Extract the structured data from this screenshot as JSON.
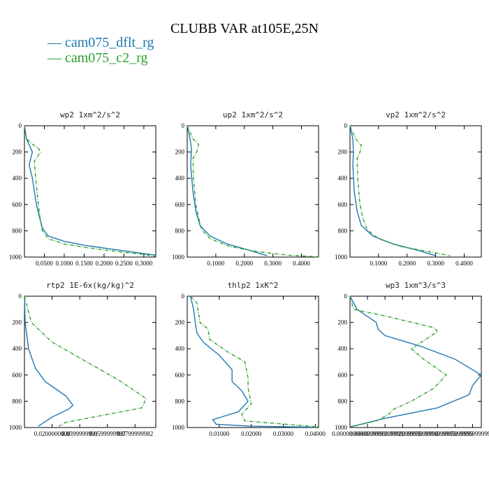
{
  "title": "CLUBB VAR at105E,25N",
  "legend": [
    {
      "name": "cam075_dflt_rg",
      "color": "#1f77b4",
      "style": "solid"
    },
    {
      "name": "cam075_c2_rg",
      "color": "#2ca02c",
      "style": "dash-dot"
    }
  ],
  "chart_data": [
    {
      "type": "line",
      "title": "wp2  1xm^2/s^2",
      "xlim": [
        0,
        0.33
      ],
      "ylim": [
        1000,
        0
      ],
      "yticks": [
        0,
        200,
        400,
        600,
        800,
        1000
      ],
      "xticks": [
        0.05,
        0.1,
        0.15,
        0.2,
        0.25,
        0.3
      ],
      "xtick_labels": [
        "0.0500",
        "0.1000",
        "0.1500",
        "0.2000",
        "0.2500",
        "0.3000"
      ],
      "series": [
        {
          "name": "cam075_dflt_rg",
          "x": [
            0,
            0.005,
            0.02,
            0.015,
            0.012,
            0.02,
            0.03,
            0.04,
            0.045,
            0.06,
            0.1,
            0.15,
            0.22,
            0.28,
            0.33
          ],
          "y": [
            0,
            100,
            200,
            260,
            300,
            400,
            600,
            720,
            780,
            840,
            880,
            910,
            940,
            965,
            985
          ]
        },
        {
          "name": "cam075_c2_rg",
          "x": [
            0,
            0.005,
            0.02,
            0.035,
            0.04,
            0.025,
            0.028,
            0.035,
            0.04,
            0.045,
            0.06,
            0.1,
            0.16,
            0.24,
            0.3,
            0.33
          ],
          "y": [
            0,
            100,
            140,
            170,
            200,
            270,
            400,
            600,
            720,
            800,
            860,
            900,
            930,
            960,
            980,
            995
          ]
        }
      ]
    },
    {
      "type": "line",
      "title": "up2  1xm^2/s^2",
      "xlim": [
        0,
        0.46
      ],
      "ylim": [
        1000,
        0
      ],
      "yticks": [
        0,
        200,
        400,
        600,
        800,
        1000
      ],
      "xticks": [
        0.1,
        0.2,
        0.3,
        0.4
      ],
      "xtick_labels": [
        "0.1000",
        "0.2000",
        "0.3000",
        "0.4000"
      ],
      "series": [
        {
          "name": "cam075_dflt_rg",
          "x": [
            0,
            0.01,
            0.015,
            0.012,
            0.02,
            0.03,
            0.045,
            0.08,
            0.14,
            0.22,
            0.28
          ],
          "y": [
            0,
            100,
            180,
            300,
            500,
            650,
            760,
            840,
            900,
            950,
            990
          ]
        },
        {
          "name": "cam075_c2_rg",
          "x": [
            0,
            0.02,
            0.04,
            0.035,
            0.02,
            0.022,
            0.03,
            0.04,
            0.05,
            0.08,
            0.15,
            0.25,
            0.35,
            0.46
          ],
          "y": [
            0,
            100,
            140,
            190,
            250,
            400,
            600,
            700,
            790,
            860,
            920,
            960,
            985,
            998
          ]
        }
      ]
    },
    {
      "type": "line",
      "title": "vp2  1xm^2/s^2",
      "xlim": [
        0,
        0.46
      ],
      "ylim": [
        1000,
        0
      ],
      "yticks": [
        0,
        200,
        400,
        600,
        800,
        1000
      ],
      "xticks": [
        0.1,
        0.2,
        0.3,
        0.4
      ],
      "xtick_labels": [
        "0.1000",
        "0.2000",
        "0.3000",
        "0.4000"
      ],
      "series": [
        {
          "name": "cam075_dflt_rg",
          "x": [
            0,
            0.01,
            0.012,
            0.01,
            0.015,
            0.025,
            0.04,
            0.08,
            0.15,
            0.24,
            0.3
          ],
          "y": [
            0,
            100,
            200,
            300,
            500,
            650,
            760,
            840,
            900,
            950,
            990
          ]
        },
        {
          "name": "cam075_c2_rg",
          "x": [
            0,
            0.02,
            0.04,
            0.035,
            0.025,
            0.027,
            0.035,
            0.045,
            0.06,
            0.1,
            0.18,
            0.28,
            0.35
          ],
          "y": [
            0,
            100,
            150,
            200,
            250,
            400,
            600,
            700,
            790,
            860,
            920,
            960,
            990
          ]
        }
      ]
    },
    {
      "type": "line",
      "title": "rtp2  1E-6x(kg/kg)^2",
      "xlim": [
        0,
        0.095
      ],
      "ylim": [
        1000,
        0
      ],
      "yticks": [
        0,
        200,
        400,
        600,
        800,
        1000
      ],
      "xticks": [
        0.02,
        0.04,
        0.06,
        0.08
      ],
      "xtick_labels": [
        "0.0200000000",
        "0.0399999991",
        "0.0599999987",
        "0.0799999982"
      ],
      "series": [
        {
          "name": "cam075_dflt_rg",
          "x": [
            0,
            0.0005,
            0.003,
            0.008,
            0.015,
            0.03,
            0.035,
            0.032,
            0.02,
            0.01
          ],
          "y": [
            0,
            200,
            400,
            550,
            650,
            760,
            830,
            860,
            920,
            990
          ]
        },
        {
          "name": "cam075_c2_rg",
          "x": [
            0,
            0.005,
            0.02,
            0.045,
            0.07,
            0.088,
            0.085,
            0.06,
            0.03,
            0.025
          ],
          "y": [
            0,
            200,
            350,
            500,
            650,
            780,
            850,
            900,
            960,
            990
          ]
        }
      ]
    },
    {
      "type": "line",
      "title": "thlp2  1xK^2",
      "xlim": [
        0,
        0.041
      ],
      "ylim": [
        1000,
        0
      ],
      "yticks": [
        0,
        200,
        400,
        600,
        800,
        1000
      ],
      "xticks": [
        0.01,
        0.02,
        0.03,
        0.04
      ],
      "xtick_labels": [
        "0.01000",
        "0.02000",
        "0.03000",
        "0.04000"
      ],
      "series": [
        {
          "name": "cam075_dflt_rg",
          "x": [
            0.001,
            0.002,
            0.0025,
            0.003,
            0.005,
            0.01,
            0.014,
            0.014,
            0.017,
            0.019,
            0.016,
            0.008,
            0.009,
            0.02,
            0.04
          ],
          "y": [
            0,
            100,
            200,
            280,
            350,
            450,
            560,
            650,
            720,
            800,
            880,
            940,
            975,
            990,
            998
          ]
        },
        {
          "name": "cam075_c2_rg",
          "x": [
            0.001,
            0.003,
            0.004,
            0.0065,
            0.007,
            0.013,
            0.018,
            0.019,
            0.019,
            0.02,
            0.017,
            0.018,
            0.041
          ],
          "y": [
            0,
            50,
            200,
            250,
            330,
            430,
            500,
            620,
            700,
            820,
            900,
            950,
            995
          ]
        }
      ]
    },
    {
      "type": "line",
      "title": "wp3  1xm^3/s^3",
      "xlim": [
        0,
        0.00075
      ],
      "ylim": [
        1000,
        0
      ],
      "yticks": [
        0,
        200,
        400,
        600,
        800,
        1000
      ],
      "xticks": [
        0,
        0.0001,
        0.0002,
        0.0003,
        0.0004,
        0.0005,
        0.0006,
        0.0007
      ],
      "xtick_labels": [
        "0.0000000000",
        "0.0000999999",
        "0.0001999999",
        "0.0002999999",
        "0.0003999999",
        "0.0004999999",
        "0.0005999999",
        "0.0006999999"
      ],
      "series": [
        {
          "name": "cam075_dflt_rg",
          "x": [
            0,
            4e-05,
            0.00015,
            0.00016,
            0.0002,
            0.0004,
            0.0006,
            0.00075,
            0.0007,
            0.00068,
            0.0005,
            0.0002,
            5e-05,
            0
          ],
          "y": [
            0,
            100,
            200,
            250,
            300,
            380,
            480,
            600,
            680,
            750,
            850,
            930,
            980,
            995
          ]
        },
        {
          "name": "cam075_c2_rg",
          "x": [
            0,
            2e-05,
            0.0002,
            0.00048,
            0.0005,
            0.00035,
            0.00042,
            0.00055,
            0.00048,
            0.00035,
            0.00025,
            0.00022,
            0.00015,
            0
          ],
          "y": [
            0,
            100,
            150,
            240,
            270,
            400,
            480,
            600,
            700,
            800,
            860,
            900,
            950,
            995
          ]
        }
      ]
    }
  ]
}
